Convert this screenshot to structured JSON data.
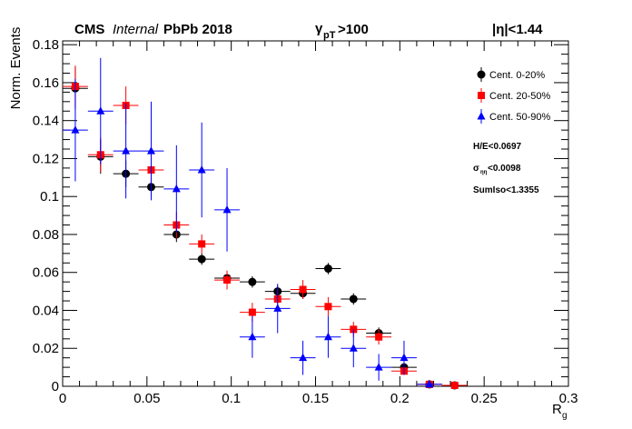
{
  "header": {
    "experiment": "CMS",
    "status": "Internal",
    "dataset": "PbPb 2018",
    "photon_cut_main": "γ",
    "photon_cut_sub": "pT",
    "photon_cut_tail": ">100",
    "eta_cut": "|η|<1.44"
  },
  "notes": {
    "he": "H/E<0.0697",
    "sigma_main": "σ",
    "sigma_sub": "ηη",
    "sigma_tail": "<0.0098",
    "sumiso": "SumIso<1.3355"
  },
  "colors": {
    "black": "#000000",
    "red": "#ff0000",
    "blue": "#0000ff"
  },
  "chart_data": {
    "type": "scatter",
    "xlabel_main": "R",
    "xlabel_sub": "g",
    "ylabel": "Norm. Events",
    "xlim": [
      0,
      0.3
    ],
    "ylim": [
      0,
      0.182
    ],
    "x_ticks": [
      "0",
      "0.05",
      "0.1",
      "0.15",
      "0.2",
      "0.25",
      "0.3"
    ],
    "y_ticks": [
      "0",
      "0.02",
      "0.04",
      "0.06",
      "0.08",
      "0.1",
      "0.12",
      "0.14",
      "0.16",
      "0.18"
    ],
    "grid": false,
    "legend_position": "top-right",
    "series": [
      {
        "name": "Cent. 0-20%",
        "color": "black",
        "marker": "circle",
        "x": [
          0.0075,
          0.0225,
          0.0375,
          0.0525,
          0.0675,
          0.0825,
          0.0975,
          0.1125,
          0.1275,
          0.1425,
          0.1575,
          0.1725,
          0.1875,
          0.2025,
          0.2175,
          0.2325
        ],
        "y": [
          0.157,
          0.121,
          0.112,
          0.105,
          0.08,
          0.067,
          0.057,
          0.055,
          0.05,
          0.049,
          0.062,
          0.046,
          0.028,
          0.01,
          0.001,
          0.0005
        ],
        "err": [
          0.011,
          0.009,
          0.007,
          0.005,
          0.004,
          0.003,
          0.003,
          0.003,
          0.003,
          0.003,
          0.003,
          0.003,
          0.003,
          0.002,
          0.001,
          0.0005
        ]
      },
      {
        "name": "Cent. 20-50%",
        "color": "red",
        "marker": "square",
        "x": [
          0.0075,
          0.0225,
          0.0375,
          0.0525,
          0.0675,
          0.0825,
          0.0975,
          0.1125,
          0.1275,
          0.1425,
          0.1575,
          0.1725,
          0.1875,
          0.2025,
          0.2175,
          0.2325
        ],
        "y": [
          0.158,
          0.122,
          0.148,
          0.114,
          0.085,
          0.075,
          0.056,
          0.039,
          0.046,
          0.051,
          0.042,
          0.03,
          0.026,
          0.008,
          0.001,
          0.0005
        ],
        "err": [
          0.011,
          0.009,
          0.01,
          0.008,
          0.007,
          0.005,
          0.005,
          0.005,
          0.005,
          0.005,
          0.005,
          0.004,
          0.004,
          0.002,
          0.001,
          0.0005
        ]
      },
      {
        "name": "Cent. 50-90%",
        "color": "blue",
        "marker": "triangle",
        "x": [
          0.0075,
          0.0225,
          0.0375,
          0.0525,
          0.0675,
          0.0825,
          0.0975,
          0.1125,
          0.1275,
          0.1425,
          0.1575,
          0.1725,
          0.1875,
          0.2025,
          0.2175
        ],
        "y": [
          0.135,
          0.145,
          0.124,
          0.124,
          0.104,
          0.114,
          0.093,
          0.026,
          0.041,
          0.015,
          0.026,
          0.02,
          0.01,
          0.015,
          0.001
        ],
        "err": [
          0.027,
          0.028,
          0.025,
          0.026,
          0.023,
          0.025,
          0.022,
          0.011,
          0.013,
          0.009,
          0.011,
          0.01,
          0.007,
          0.009,
          0.001
        ]
      }
    ]
  }
}
